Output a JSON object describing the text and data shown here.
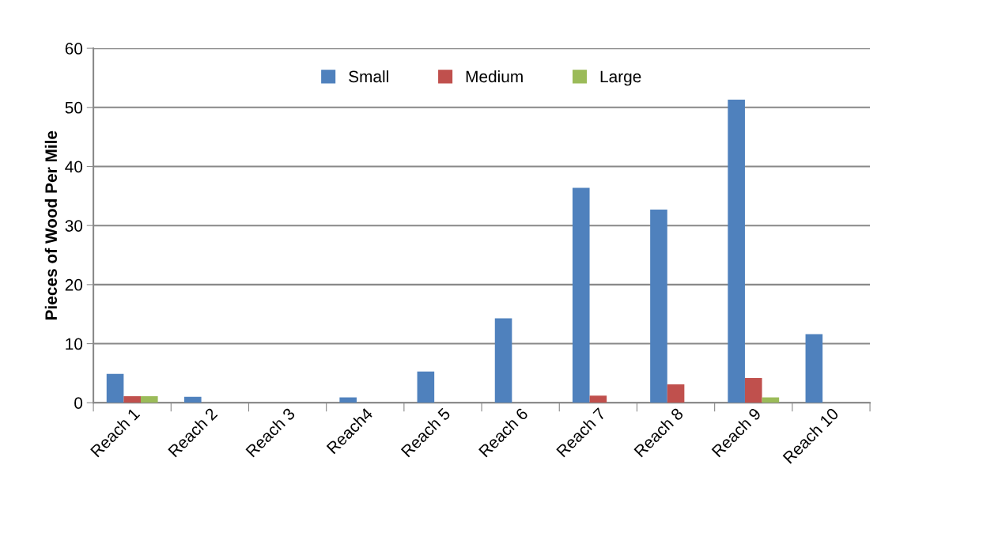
{
  "chart_data": {
    "type": "bar",
    "ylabel": "Pieces of Wood Per Mile",
    "categories": [
      "Reach 1",
      "Reach 2",
      "Reach 3",
      "Reach4",
      "Reach 5",
      "Reach 6",
      "Reach 7",
      "Reach 8",
      "Reach 9",
      "Reach 10"
    ],
    "series": [
      {
        "name": "Small",
        "color": "#4f81bd",
        "values": [
          4.9,
          1.0,
          0,
          0.9,
          5.3,
          14.3,
          36.4,
          32.7,
          51.3,
          11.6
        ]
      },
      {
        "name": "Medium",
        "color": "#c0504d",
        "values": [
          1.1,
          0,
          0,
          0,
          0,
          0,
          1.2,
          3.1,
          4.2,
          0
        ]
      },
      {
        "name": "Large",
        "color": "#9bbb59",
        "values": [
          1.1,
          0,
          0,
          0,
          0,
          0,
          0,
          0,
          0.9,
          0
        ]
      }
    ],
    "ylim": [
      0,
      60
    ],
    "yticks": [
      0,
      10,
      20,
      30,
      40,
      50,
      60
    ],
    "grid": "y",
    "legend": "top"
  }
}
